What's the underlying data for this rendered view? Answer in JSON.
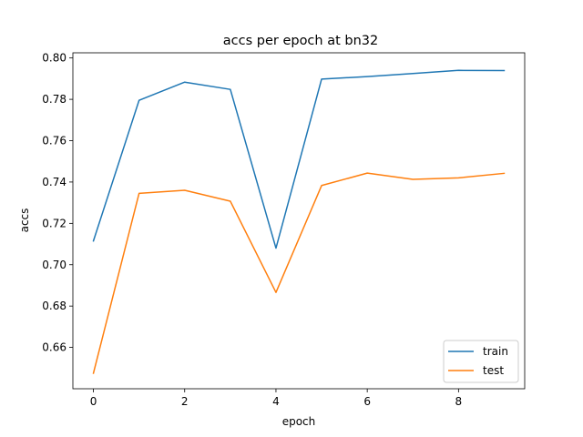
{
  "chart_data": {
    "type": "line",
    "title": "accs per epoch at bn32",
    "xlabel": "epoch",
    "ylabel": "accs",
    "xlim": [
      -0.45,
      9.45
    ],
    "ylim": [
      0.64,
      0.8025
    ],
    "xticks": [
      0,
      2,
      4,
      6,
      8
    ],
    "xtick_labels": [
      "0",
      "2",
      "4",
      "6",
      "8"
    ],
    "yticks": [
      0.66,
      0.68,
      0.7,
      0.72,
      0.74,
      0.76,
      0.78,
      0.8
    ],
    "ytick_labels": [
      "0.66",
      "0.68",
      "0.70",
      "0.72",
      "0.74",
      "0.76",
      "0.78",
      "0.80"
    ],
    "grid": false,
    "legend_position": "lower-right",
    "x": [
      0,
      1,
      2,
      3,
      4,
      5,
      6,
      7,
      8,
      9
    ],
    "series": [
      {
        "name": "train",
        "color": "#1f77b4",
        "values": [
          0.7115,
          0.7795,
          0.7883,
          0.7848,
          0.708,
          0.7898,
          0.791,
          0.7925,
          0.794,
          0.7939
        ]
      },
      {
        "name": "test",
        "color": "#ff7f0e",
        "values": [
          0.6475,
          0.7345,
          0.736,
          0.7307,
          0.6866,
          0.7383,
          0.7443,
          0.7413,
          0.742,
          0.7442
        ]
      }
    ]
  }
}
